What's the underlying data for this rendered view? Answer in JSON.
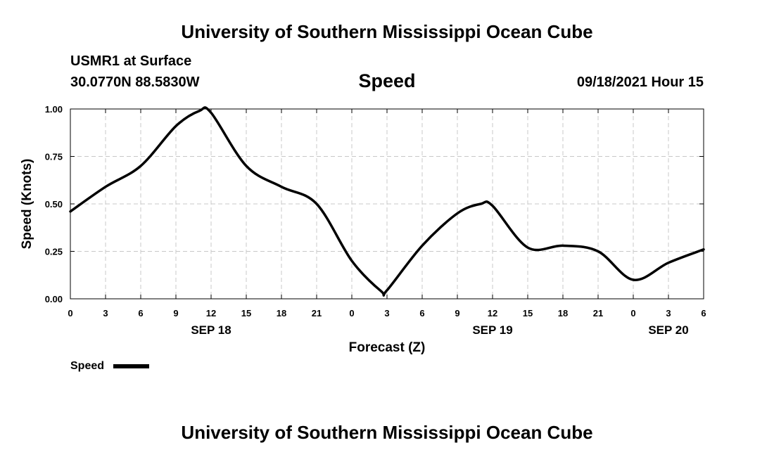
{
  "header": {
    "title": "University of Southern Mississippi Ocean Cube",
    "station": "USMR1 at Surface",
    "coords": "30.0770N  88.5830W",
    "variable": "Speed",
    "datetime": "09/18/2021 Hour 15"
  },
  "footer": {
    "title": "University of Southern Mississippi Ocean Cube"
  },
  "chart_data": {
    "type": "line",
    "title": "Speed",
    "xlabel": "Forecast (Z)",
    "ylabel": "Speed (Knots)",
    "xlim": [
      0,
      54
    ],
    "ylim": [
      0,
      1
    ],
    "x_ticks": [
      0,
      3,
      6,
      9,
      12,
      15,
      18,
      21,
      24,
      27,
      30,
      33,
      36,
      39,
      42,
      45,
      48,
      51,
      54
    ],
    "x_tick_labels": [
      "0",
      "3",
      "6",
      "9",
      "12",
      "15",
      "18",
      "21",
      "0",
      "3",
      "6",
      "9",
      "12",
      "15",
      "18",
      "21",
      "0",
      "3",
      "6"
    ],
    "y_ticks": [
      0,
      0.25,
      0.5,
      0.75,
      1.0
    ],
    "y_tick_labels": [
      "0.00",
      "0.25",
      "0.50",
      "0.75",
      "1.00"
    ],
    "date_labels": [
      {
        "x": 12,
        "label": "SEP 18"
      },
      {
        "x": 36,
        "label": "SEP 19"
      },
      {
        "x": 51,
        "label": "SEP 20"
      }
    ],
    "grid": true,
    "legend": "bottom-left",
    "color": "#000000",
    "series": [
      {
        "name": "Speed",
        "x": [
          0,
          3,
          6,
          9,
          11,
          12,
          15,
          18,
          21,
          24,
          26.5,
          27,
          30,
          33,
          35,
          36,
          39,
          42,
          45,
          48,
          51,
          54
        ],
        "values": [
          0.46,
          0.59,
          0.7,
          0.91,
          0.99,
          0.98,
          0.7,
          0.59,
          0.5,
          0.2,
          0.04,
          0.045,
          0.28,
          0.45,
          0.5,
          0.49,
          0.27,
          0.28,
          0.25,
          0.1,
          0.19,
          0.26
        ]
      }
    ]
  }
}
